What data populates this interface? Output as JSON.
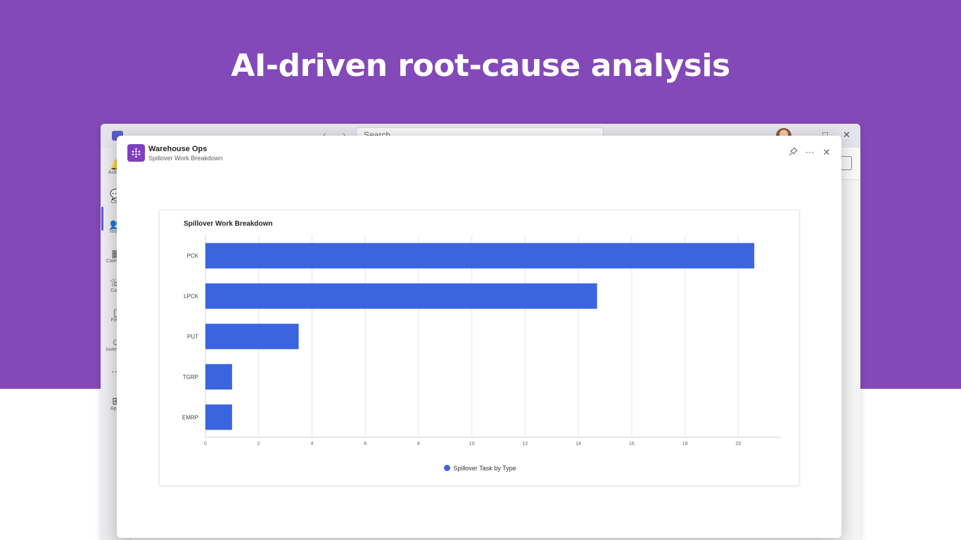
{
  "headline": "AI-driven root-cause analysis",
  "colors": {
    "banner": "#8449b8",
    "bar": "#3b65e0",
    "app_icon": "#7f3fbf"
  },
  "teams": {
    "search_placeholder": "Search",
    "rail": [
      {
        "icon": "bell-icon",
        "label": "Activity"
      },
      {
        "icon": "chat-icon",
        "label": "Chat"
      },
      {
        "icon": "teams-icon",
        "label": "Teams"
      },
      {
        "icon": "calendar-icon",
        "label": "Calendar"
      },
      {
        "icon": "calls-icon",
        "label": "Calls"
      },
      {
        "icon": "files-icon",
        "label": "Files"
      },
      {
        "icon": "inventory-icon",
        "label": "Inventory"
      },
      {
        "icon": "more-icon",
        "label": ""
      },
      {
        "icon": "apps-icon",
        "label": "Apps"
      }
    ]
  },
  "dialog": {
    "app_name": "Warehouse Ops",
    "subtitle": "Spillover Work Breakdown",
    "buttons": {
      "pin": "pin-icon",
      "more": "more-icon",
      "close": "close-icon"
    }
  },
  "chart_data": {
    "type": "bar",
    "orientation": "horizontal",
    "title": "Spillover Work Breakdown",
    "categories": [
      "PCK",
      "LPCK",
      "PUT",
      "TGRP",
      "EMRP"
    ],
    "series": [
      {
        "name": "Spillover Task by Type",
        "values": [
          20.6,
          14.7,
          3.5,
          1,
          1
        ]
      }
    ],
    "xlim": [
      0,
      21.6
    ],
    "xticks": [
      0,
      2,
      4,
      6,
      8,
      10,
      12,
      14,
      16,
      18,
      20
    ],
    "grid": "vertical",
    "legend": "bottom-center"
  }
}
